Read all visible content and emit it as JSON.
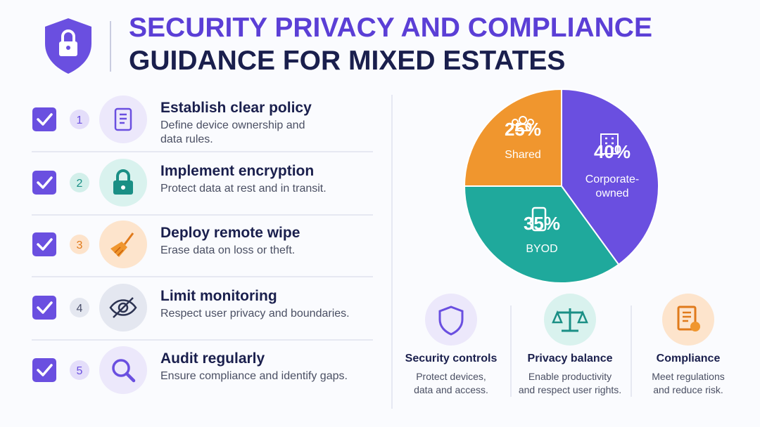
{
  "header": {
    "title_line1": "SECURITY PRIVACY AND COMPLIANCE",
    "title_line2": "GUIDANCE FOR MIXED ESTATES"
  },
  "steps": [
    {
      "number": 1,
      "title": "Establish clear policy",
      "desc": [
        "Define device ownership and",
        "data rules."
      ]
    },
    {
      "number": 2,
      "title": "Implement encryption",
      "desc": [
        "Protect data at rest and in transit."
      ]
    },
    {
      "number": 3,
      "title": "Deploy remote wipe",
      "desc": [
        "Erase data on loss or theft."
      ]
    },
    {
      "number": 4,
      "title": "Limit monitoring",
      "desc": [
        "Respect user privacy and boundaries."
      ]
    },
    {
      "number": 5,
      "title": "Audit regularly",
      "desc": [
        "Ensure compliance and identify gaps."
      ]
    }
  ],
  "chart_data": {
    "type": "pie",
    "categories": [
      "Corporate-owned",
      "BYOD",
      "Shared"
    ],
    "values": [
      40,
      35,
      25
    ],
    "value_labels": [
      "40%",
      "35%",
      "25%"
    ],
    "colors": [
      "#6a4fe0",
      "#1fa99c",
      "#f0962e"
    ]
  },
  "pillars": [
    {
      "title": "Security controls",
      "desc": [
        "Protect devices,",
        "data and access."
      ]
    },
    {
      "title": "Privacy balance",
      "desc": [
        "Enable productivity",
        "and respect user rights."
      ]
    },
    {
      "title": "Compliance",
      "desc": [
        "Meet regulations",
        "and reduce risk."
      ]
    }
  ]
}
